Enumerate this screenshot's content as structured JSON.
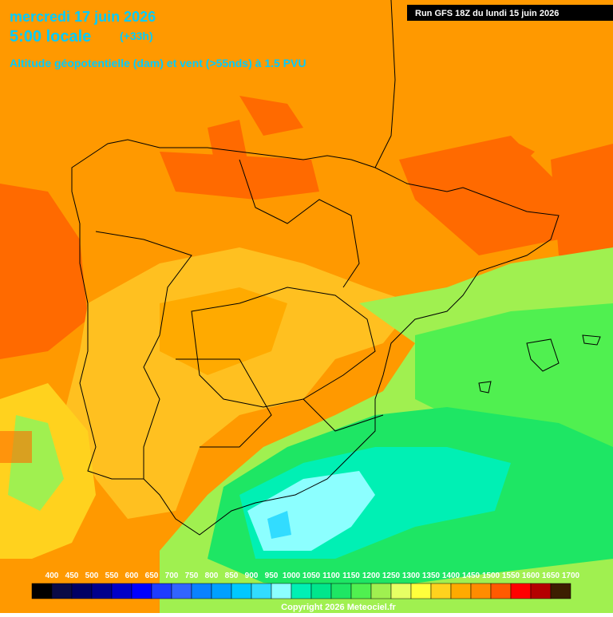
{
  "header": {
    "date": "mercredi 17 juin 2026",
    "time": "5:00 locale",
    "lead": "(+33h)",
    "field": "Altitude géopotentielle (dam) et vent (>55nds) à 1.5 PVU",
    "run": "Run GFS 18Z du lundi 15 juin 2026"
  },
  "legend": {
    "labels": [
      400,
      450,
      500,
      550,
      600,
      650,
      700,
      750,
      800,
      850,
      900,
      950,
      1000,
      1050,
      1100,
      1150,
      1200,
      1250,
      1300,
      1350,
      1400,
      1450,
      1500,
      1550,
      1600,
      1650,
      1700
    ],
    "colors": [
      "#000000",
      "#0a0a46",
      "#000064",
      "#00008c",
      "#0000c8",
      "#0000ff",
      "#1e3cff",
      "#3264ff",
      "#0a82ff",
      "#00a0ff",
      "#00c8ff",
      "#32dcff",
      "#8cffff",
      "#00f0b4",
      "#00e68c",
      "#1ee664",
      "#50f050",
      "#a0f050",
      "#e6ff64",
      "#ffff3c",
      "#ffd21e",
      "#ffaa00",
      "#ff8c00",
      "#ff5a00",
      "#ff0000",
      "#b40000",
      "#3c1e00"
    ]
  },
  "footer": {
    "copyright": "Copyright 2026 Meteociel.fr"
  }
}
